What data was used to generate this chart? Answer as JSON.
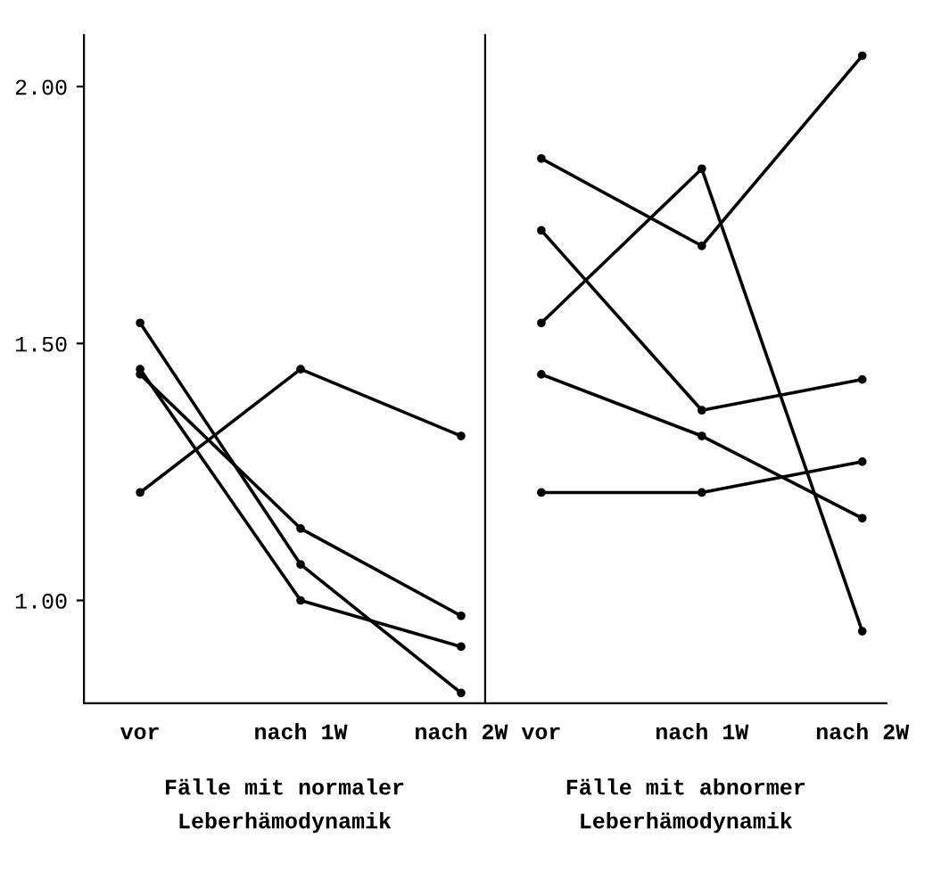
{
  "chart_data": [
    {
      "type": "line",
      "categories": [
        "vor",
        "nach 1W",
        "nach 2W"
      ],
      "xlabel": "Fälle mit normaler\nLeberhämodynamik",
      "ylim": [
        0.8,
        2.1
      ],
      "yticks": [
        {
          "value": 1.0,
          "label": "1.00"
        },
        {
          "value": 1.5,
          "label": "1.50"
        },
        {
          "value": 2.0,
          "label": "2.00"
        }
      ],
      "marker": "circle",
      "grid": false,
      "series": [
        {
          "color": "#000000",
          "values": [
            1.21,
            1.45,
            1.32
          ]
        },
        {
          "color": "#000000",
          "values": [
            1.54,
            1.07,
            0.82
          ]
        },
        {
          "color": "#000000",
          "values": [
            1.44,
            1.14,
            0.97
          ]
        },
        {
          "color": "#000000",
          "values": [
            1.45,
            1.0,
            0.91
          ]
        }
      ]
    },
    {
      "type": "line",
      "categories": [
        "vor",
        "nach 1W",
        "nach 2W"
      ],
      "xlabel": "Fälle mit abnormer\nLeberhämodynamik",
      "ylim": [
        0.8,
        2.1
      ],
      "tick_labels": "x",
      "marker": "circle",
      "grid": false,
      "series": [
        {
          "color": "#000000",
          "values": [
            1.86,
            1.69,
            2.06
          ]
        },
        {
          "color": "#000000",
          "values": [
            1.54,
            1.84,
            0.94
          ]
        },
        {
          "color": "#000000",
          "values": [
            1.72,
            1.37,
            1.43
          ]
        },
        {
          "color": "#000000",
          "values": [
            1.44,
            1.32,
            1.16
          ]
        },
        {
          "color": "#000000",
          "values": [
            1.21,
            1.21,
            1.27
          ]
        }
      ]
    }
  ]
}
